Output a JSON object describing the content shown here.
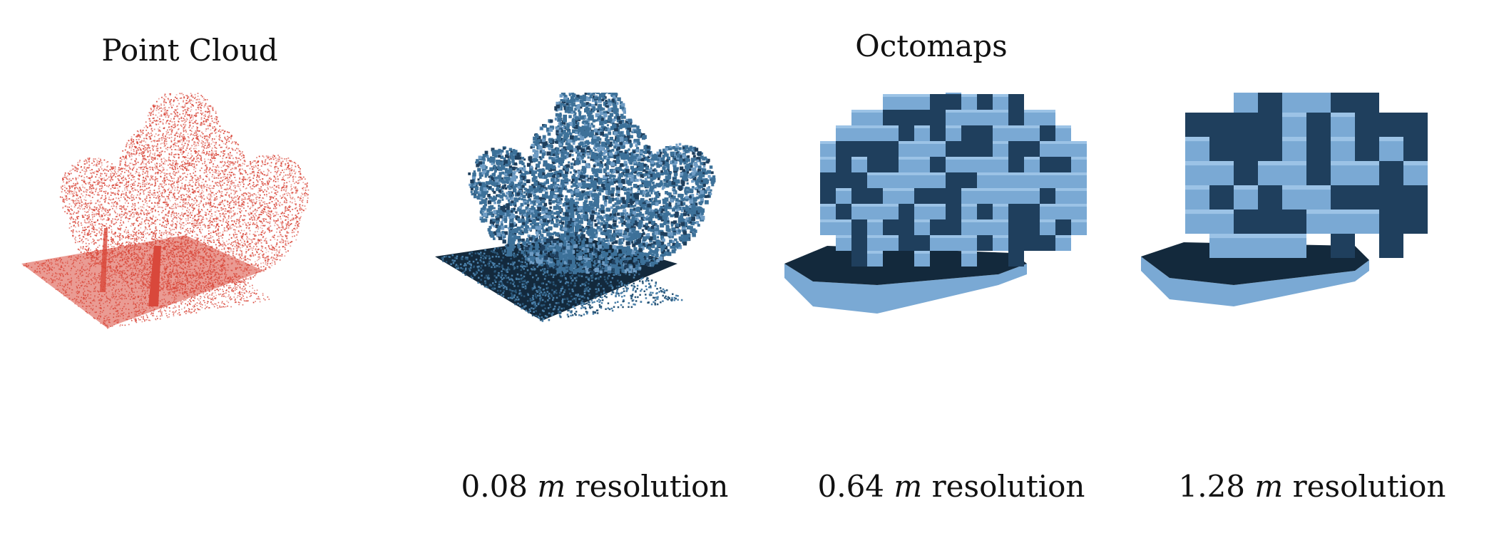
{
  "titles": {
    "point_cloud": "Point Cloud",
    "octomaps": "Octomaps"
  },
  "captions": [
    {
      "value": "0.08",
      "unit": "m",
      "suffix": "resolution"
    },
    {
      "value": "0.64",
      "unit": "m",
      "suffix": "resolution"
    },
    {
      "value": "1.28",
      "unit": "m",
      "suffix": "resolution"
    }
  ],
  "colors": {
    "point_cloud": "#d9483b",
    "octomap_fine": "#3d7199",
    "voxel_light": "#7aa9d4",
    "voxel_dark": "#1f3f5d",
    "ground_dark": "#13293c"
  }
}
